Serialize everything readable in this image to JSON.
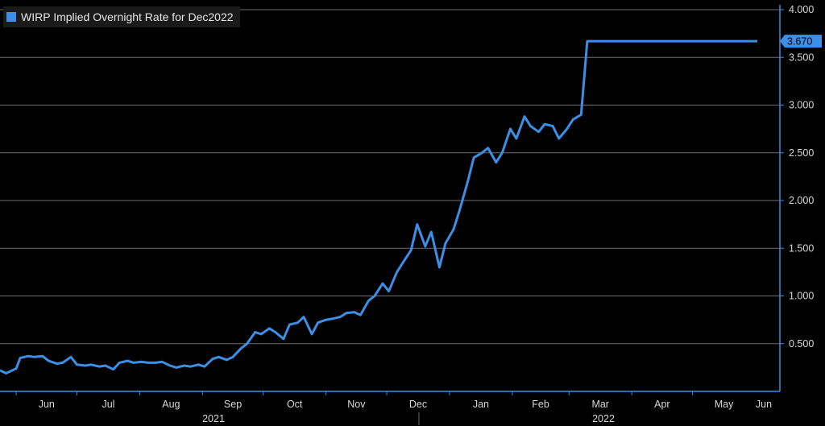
{
  "colors": {
    "background": "#000000",
    "series": "#3d8fe6",
    "grid": "#6e6e6e",
    "axis": "#3d8fe6",
    "text": "#d8d8d8"
  },
  "legend": {
    "label": "WIRP Implied Overnight Rate for Dec2022"
  },
  "chart_data": {
    "type": "line",
    "title": "",
    "xlabel": "",
    "ylabel": "",
    "legend_placement": "top-left",
    "grid": "horizontal",
    "ylim": [
      0.0,
      4.0
    ],
    "y_ticks": [
      "4.000",
      "3.500",
      "3.000",
      "2.500",
      "2.000",
      "1.500",
      "1.000",
      "0.500"
    ],
    "x_ticks": [
      "Jun",
      "Jul",
      "Aug",
      "Sep",
      "Oct",
      "Nov",
      "Dec",
      "Jan",
      "Feb",
      "Mar",
      "Apr",
      "May",
      "Jun"
    ],
    "year_labels": [
      "2021",
      "2022"
    ],
    "last_value_label": "3.670",
    "series": [
      {
        "name": "WIRP Implied Overnight Rate for Dec2022",
        "x": [
          "2021-05-24",
          "2021-05-27",
          "2021-06-01",
          "2021-06-03",
          "2021-06-07",
          "2021-06-10",
          "2021-06-14",
          "2021-06-17",
          "2021-06-21",
          "2021-06-24",
          "2021-06-28",
          "2021-07-01",
          "2021-07-05",
          "2021-07-08",
          "2021-07-12",
          "2021-07-15",
          "2021-07-19",
          "2021-07-22",
          "2021-07-26",
          "2021-07-29",
          "2021-08-02",
          "2021-08-05",
          "2021-08-09",
          "2021-08-12",
          "2021-08-16",
          "2021-08-19",
          "2021-08-23",
          "2021-08-26",
          "2021-08-30",
          "2021-09-02",
          "2021-09-06",
          "2021-09-09",
          "2021-09-13",
          "2021-09-16",
          "2021-09-20",
          "2021-09-23",
          "2021-09-27",
          "2021-09-30",
          "2021-10-04",
          "2021-10-07",
          "2021-10-11",
          "2021-10-14",
          "2021-10-18",
          "2021-10-21",
          "2021-10-25",
          "2021-10-28",
          "2021-11-01",
          "2021-11-04",
          "2021-11-08",
          "2021-11-11",
          "2021-11-15",
          "2021-11-18",
          "2021-11-22",
          "2021-11-25",
          "2021-11-29",
          "2021-12-02",
          "2021-12-06",
          "2021-12-09",
          "2021-12-13",
          "2021-12-16",
          "2021-12-20",
          "2021-12-23",
          "2021-12-27",
          "2021-12-30",
          "2022-01-03",
          "2022-01-06",
          "2022-01-10",
          "2022-01-13",
          "2022-01-17",
          "2022-01-20",
          "2022-01-24",
          "2022-01-27",
          "2022-01-31",
          "2022-02-03",
          "2022-02-07",
          "2022-02-10",
          "2022-02-14",
          "2022-02-17",
          "2022-02-21",
          "2022-02-24",
          "2022-02-28",
          "2022-03-03",
          "2022-03-07",
          "2022-03-10",
          "2022-03-14",
          "2022-03-17",
          "2022-03-21",
          "2022-03-24",
          "2022-03-28",
          "2022-03-31",
          "2022-04-04",
          "2022-04-07",
          "2022-04-11",
          "2022-04-14",
          "2022-04-18",
          "2022-04-21",
          "2022-04-25",
          "2022-04-28",
          "2022-05-02",
          "2022-05-05",
          "2022-05-09",
          "2022-05-12",
          "2022-05-16",
          "2022-05-19",
          "2022-05-23",
          "2022-05-26",
          "2022-05-31",
          "2022-06-01",
          "2022-06-02"
        ],
        "values": [
          0.22,
          0.19,
          0.24,
          0.35,
          0.37,
          0.36,
          0.37,
          0.32,
          0.29,
          0.3,
          0.36,
          0.28,
          0.27,
          0.28,
          0.26,
          0.27,
          0.23,
          0.3,
          0.32,
          0.3,
          0.31,
          0.3,
          0.3,
          0.31,
          0.27,
          0.25,
          0.27,
          0.26,
          0.28,
          0.26,
          0.34,
          0.36,
          0.33,
          0.36,
          0.45,
          0.5,
          0.62,
          0.6,
          0.66,
          0.62,
          0.55,
          0.7,
          0.72,
          0.78,
          0.6,
          0.72,
          0.75,
          0.76,
          0.78,
          0.82,
          0.83,
          0.8,
          0.95,
          1.0,
          1.13,
          1.05,
          1.25,
          1.35,
          1.48,
          1.75,
          1.52,
          1.67,
          1.3,
          1.55,
          1.7,
          1.9,
          2.2,
          2.45,
          2.5,
          2.55,
          2.4,
          2.5,
          2.75,
          2.65,
          2.88,
          2.78,
          2.72,
          2.8,
          2.78,
          2.65,
          2.75,
          2.85,
          2.9,
          3.67,
          3.67,
          3.67,
          3.67,
          3.67,
          3.67,
          3.67,
          3.67,
          3.67,
          3.67,
          3.67,
          3.67,
          3.67,
          3.67,
          3.67,
          3.67,
          3.67,
          3.67,
          3.67,
          3.67,
          3.67,
          3.67,
          3.67,
          3.67,
          3.67,
          3.67
        ]
      }
    ]
  }
}
